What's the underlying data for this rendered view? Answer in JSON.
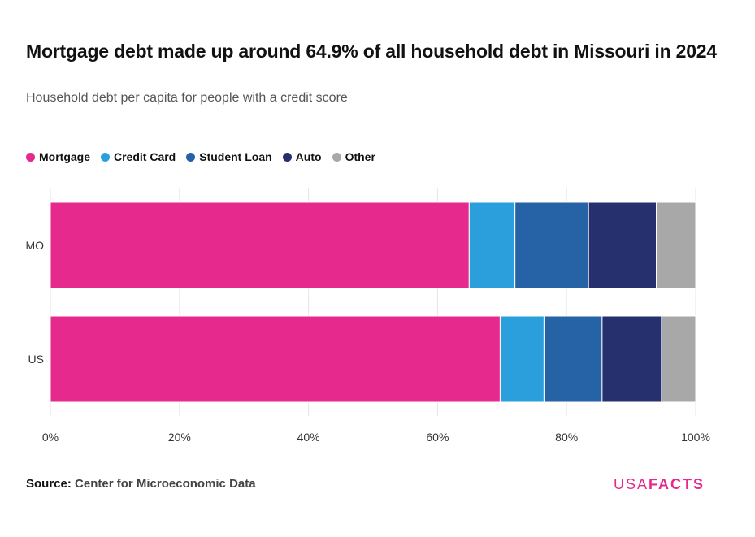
{
  "title": "Mortgage debt made up around 64.9% of all household debt in Missouri in 2024",
  "subtitle": "Household debt per capita for people with a credit score",
  "source_label": "Source:",
  "source_value": "Center for Microeconomic Data",
  "brand_usa": "USA",
  "brand_facts": "FACTS",
  "chart_data": {
    "type": "bar",
    "orientation": "horizontal",
    "stacked": true,
    "categories": [
      "MO",
      "US"
    ],
    "series": [
      {
        "name": "Mortgage",
        "color": "#e6298d",
        "values": [
          64.9,
          69.7
        ]
      },
      {
        "name": "Credit Card",
        "color": "#2a9fdb",
        "values": [
          7.1,
          6.8
        ]
      },
      {
        "name": "Student Loan",
        "color": "#2663a6",
        "values": [
          11.4,
          9.0
        ]
      },
      {
        "name": "Auto",
        "color": "#27306e",
        "values": [
          10.5,
          9.2
        ]
      },
      {
        "name": "Other",
        "color": "#a8a8a8",
        "values": [
          6.1,
          5.3
        ]
      }
    ],
    "x_ticks": [
      "0%",
      "20%",
      "40%",
      "60%",
      "80%",
      "100%"
    ],
    "xlim": [
      0,
      100
    ],
    "grid": true,
    "legend_position": "top-left"
  }
}
